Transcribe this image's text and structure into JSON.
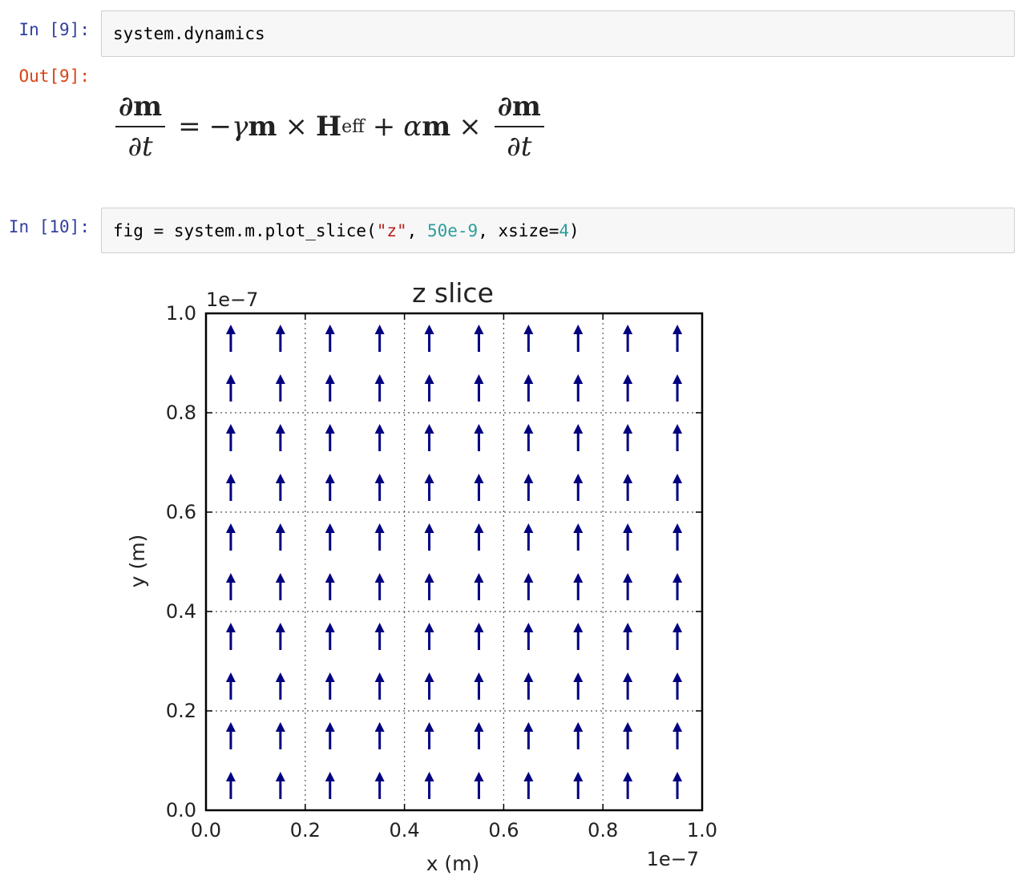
{
  "cells": [
    {
      "in_prompt": "In [9]:",
      "code": "system.dynamics",
      "out_prompt": "Out[9]:",
      "output_equation": {
        "lhs_num": "∂m",
        "lhs_den": "∂t",
        "equals": "=",
        "minus": "−",
        "gamma": "γ",
        "m1": "m",
        "cross1": "×",
        "H": "H",
        "H_sub": "eff",
        "plus": "+",
        "alpha": "α",
        "m2": "m",
        "cross2": "×",
        "rhs_num": "∂m",
        "rhs_den": "∂t"
      }
    },
    {
      "in_prompt": "In [10]:",
      "code_tokens": {
        "t1": "fig = system.m.plot_slice(",
        "t2": "\"z\"",
        "t3": ", ",
        "t4": "50e-9",
        "t5": ", xsize=",
        "t6": "4",
        "t7": ")"
      }
    }
  ],
  "chart_data": {
    "type": "quiver",
    "title": "z slice",
    "xlabel": "x (m)",
    "ylabel": "y (m)",
    "x_offset_label": "1e−7",
    "y_offset_label": "1e−7",
    "xlim": [
      0.0,
      1.0
    ],
    "ylim": [
      0.0,
      1.0
    ],
    "xticks": [
      0.0,
      0.2,
      0.4,
      0.6,
      0.8,
      1.0
    ],
    "yticks": [
      0.0,
      0.2,
      0.4,
      0.6,
      0.8,
      1.0
    ],
    "xtick_labels": [
      "0.0",
      "0.2",
      "0.4",
      "0.6",
      "0.8",
      "1.0"
    ],
    "ytick_labels": [
      "0.0",
      "0.2",
      "0.4",
      "0.6",
      "0.8",
      "1.0"
    ],
    "grid": true,
    "arrow_color": "#000080",
    "grid_x": [
      0.05,
      0.15,
      0.25,
      0.35,
      0.45,
      0.55,
      0.65,
      0.75,
      0.85,
      0.95
    ],
    "grid_y": [
      0.05,
      0.15,
      0.25,
      0.35,
      0.45,
      0.55,
      0.65,
      0.75,
      0.85,
      0.95
    ],
    "vector_direction": [
      0,
      1
    ]
  }
}
